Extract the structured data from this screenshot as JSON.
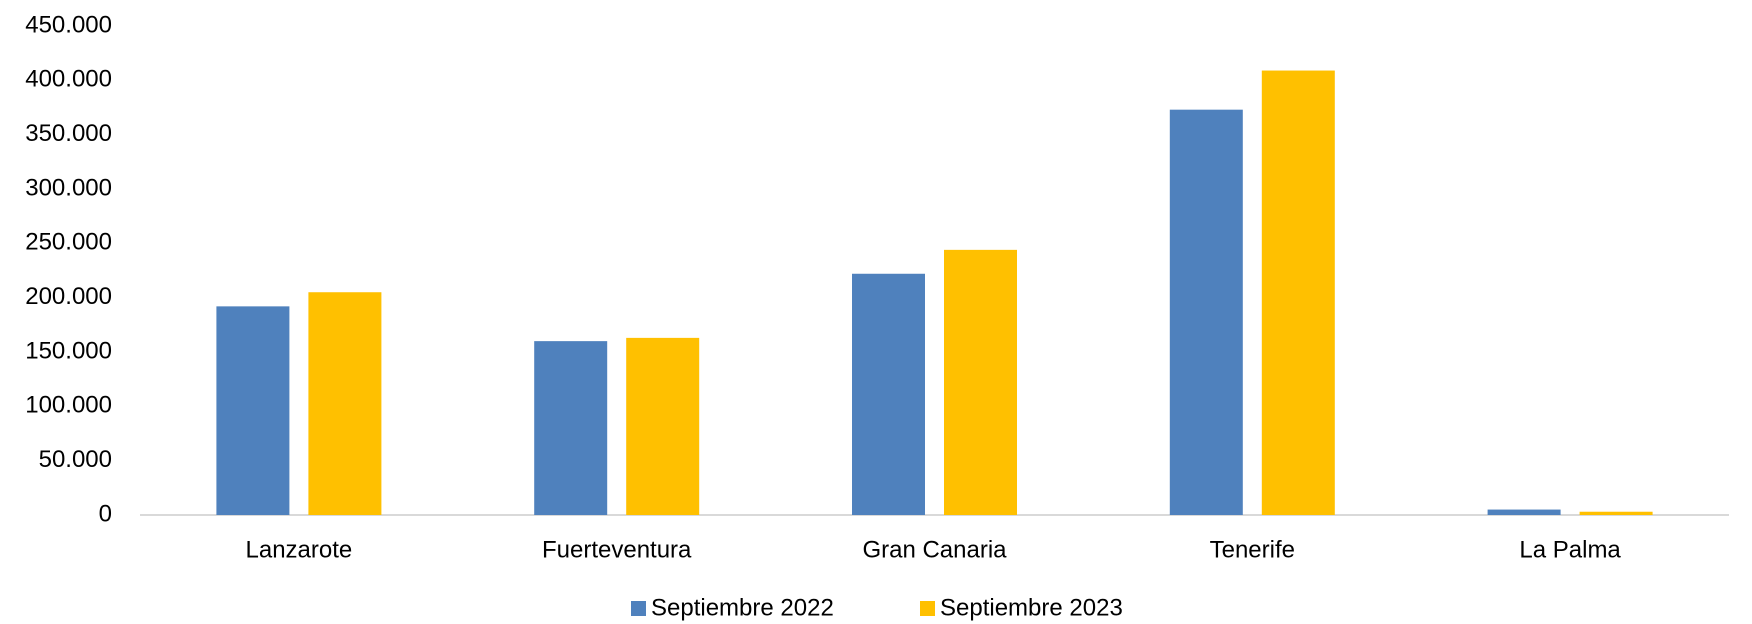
{
  "chart_data": {
    "type": "bar",
    "categories": [
      "Lanzarote",
      "Fuerteventura",
      "Gran Canaria",
      "Tenerife",
      "La Palma"
    ],
    "series": [
      {
        "name": "Septiembre 2022",
        "color": "#4f81bd",
        "values": [
          192000,
          160000,
          222000,
          373000,
          5000
        ]
      },
      {
        "name": "Septiembre 2023",
        "color": "#ffc000",
        "values": [
          205000,
          163000,
          244000,
          409000,
          3000
        ]
      }
    ],
    "ylim": [
      0,
      450000
    ],
    "yticks": [
      0,
      {
        "value": 50000,
        "label": "50.000"
      },
      {
        "value": 100000,
        "label": "100.000"
      },
      {
        "value": 150000,
        "label": "150.000"
      },
      {
        "value": 200000,
        "label": "200.000"
      },
      {
        "value": 250000,
        "label": "250.000"
      },
      {
        "value": 300000,
        "label": "300.000"
      },
      {
        "value": 350000,
        "label": "350.000"
      },
      {
        "value": 400000,
        "label": "400.000"
      },
      {
        "value": 450000,
        "label": "450.000"
      }
    ],
    "grid": false,
    "legend": "bottom"
  }
}
